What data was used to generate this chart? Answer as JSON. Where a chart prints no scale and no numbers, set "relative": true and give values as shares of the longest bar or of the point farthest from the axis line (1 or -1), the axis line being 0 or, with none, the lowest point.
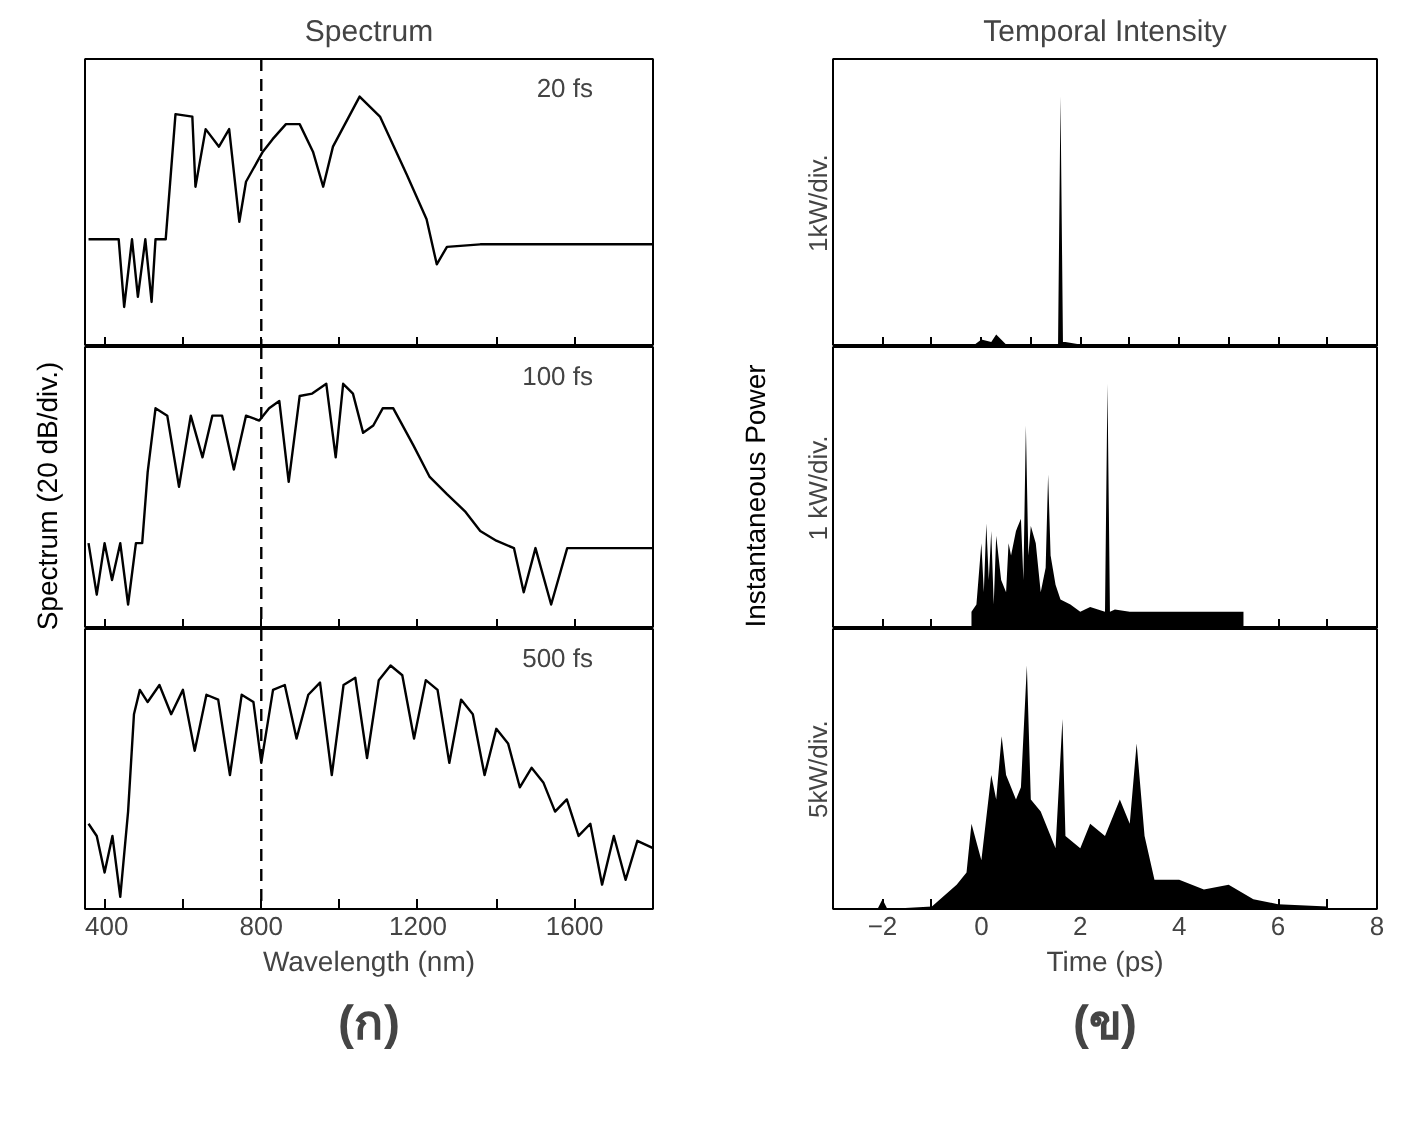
{
  "chart_data": [
    {
      "type": "line",
      "title": "Spectrum",
      "annotations": [
        "20 fs"
      ],
      "relative": true,
      "color": "#000000",
      "xlim": [
        350,
        1800
      ],
      "tick_labels": false,
      "xticks": [
        400,
        {
          "value": 600,
          "label": null
        },
        800,
        {
          "value": 1000,
          "label": null
        },
        1200,
        {
          "value": 1400,
          "label": null
        },
        1600
      ],
      "ref_lines": [
        {
          "axis": "x",
          "value": 800,
          "line_style": "dashed"
        }
      ],
      "x": [
        359,
        436,
        450,
        470,
        485,
        504,
        520,
        530,
        556,
        581,
        624,
        632,
        658,
        692,
        718,
        744,
        761,
        804,
        829,
        863,
        898,
        932,
        958,
        983,
        1051,
        1103,
        1171,
        1222,
        1248,
        1274,
        1359,
        1496,
        1800
      ],
      "values": [
        0.43,
        0.43,
        0.16,
        0.43,
        0.2,
        0.43,
        0.18,
        0.43,
        0.43,
        0.93,
        0.92,
        0.64,
        0.87,
        0.8,
        0.87,
        0.5,
        0.66,
        0.78,
        0.83,
        0.89,
        0.89,
        0.78,
        0.64,
        0.8,
        1,
        0.92,
        0.69,
        0.51,
        0.33,
        0.4,
        0.41,
        0.41,
        0.41
      ]
    },
    {
      "type": "line",
      "ylabel": "Spectrum (20 dB/div.)",
      "annotations": [
        "100 fs"
      ],
      "relative": true,
      "color": "#000000",
      "xlim": [
        350,
        1800
      ],
      "tick_labels": false,
      "xticks": [
        400,
        {
          "value": 600,
          "label": null
        },
        800,
        {
          "value": 1000,
          "label": null
        },
        1200,
        {
          "value": 1400,
          "label": null
        },
        1600
      ],
      "ref_lines": [
        {
          "axis": "x",
          "value": 800,
          "line_style": "dashed"
        }
      ],
      "x": [
        359,
        380,
        400,
        419,
        440,
        460,
        480,
        496,
        510,
        530,
        560,
        590,
        620,
        650,
        675,
        700,
        730,
        761,
        795,
        820,
        846,
        870,
        898,
        930,
        966,
        990,
        1009,
        1034,
        1060,
        1086,
        1110,
        1137,
        1188,
        1230,
        1274,
        1320,
        1359,
        1400,
        1445,
        1470,
        1500,
        1540,
        1581,
        1700,
        1800
      ],
      "values": [
        0.35,
        0.14,
        0.35,
        0.2,
        0.35,
        0.1,
        0.35,
        0.35,
        0.64,
        0.9,
        0.87,
        0.58,
        0.87,
        0.7,
        0.87,
        0.87,
        0.65,
        0.87,
        0.85,
        0.9,
        0.93,
        0.6,
        0.95,
        0.96,
        1.0,
        0.7,
        1.0,
        0.96,
        0.8,
        0.83,
        0.9,
        0.9,
        0.75,
        0.62,
        0.55,
        0.48,
        0.4,
        0.36,
        0.33,
        0.15,
        0.33,
        0.1,
        0.33,
        0.33,
        0.33
      ]
    },
    {
      "type": "line",
      "xlabel": "Wavelength (nm)",
      "subtitle": "(ก)",
      "annotations": [
        "500 fs"
      ],
      "relative": true,
      "color": "#000000",
      "xlim": [
        350,
        1800
      ],
      "tick_labels": "x",
      "xticks": [
        400,
        {
          "value": 600,
          "label": null
        },
        800,
        {
          "value": 1000,
          "label": null
        },
        1200,
        {
          "value": 1400,
          "label": null
        },
        1600
      ],
      "ref_lines": [
        {
          "axis": "x",
          "value": 800,
          "line_style": "dashed"
        }
      ],
      "x": [
        359,
        380,
        400,
        420,
        440,
        460,
        475,
        490,
        510,
        540,
        570,
        600,
        630,
        660,
        690,
        720,
        750,
        780,
        800,
        830,
        860,
        890,
        920,
        950,
        980,
        1010,
        1040,
        1070,
        1100,
        1130,
        1160,
        1190,
        1220,
        1250,
        1280,
        1310,
        1340,
        1370,
        1400,
        1430,
        1460,
        1490,
        1520,
        1550,
        1580,
        1610,
        1640,
        1670,
        1700,
        1730,
        1760,
        1800
      ],
      "values": [
        0.35,
        0.3,
        0.15,
        0.3,
        0.05,
        0.4,
        0.8,
        0.9,
        0.85,
        0.92,
        0.8,
        0.9,
        0.65,
        0.88,
        0.86,
        0.55,
        0.88,
        0.85,
        0.6,
        0.9,
        0.92,
        0.7,
        0.88,
        0.93,
        0.55,
        0.92,
        0.95,
        0.62,
        0.94,
        1.0,
        0.96,
        0.7,
        0.94,
        0.9,
        0.6,
        0.86,
        0.8,
        0.55,
        0.74,
        0.68,
        0.5,
        0.58,
        0.52,
        0.4,
        0.45,
        0.3,
        0.35,
        0.1,
        0.3,
        0.12,
        0.28,
        0.25
      ]
    },
    {
      "type": "area",
      "title": "Temporal Intensity",
      "ylabel": "1kW/div.",
      "relative": true,
      "color": "#000000",
      "xlim": [
        -3,
        8
      ],
      "tick_labels": false,
      "xticks": [
        -2,
        {
          "value": -1,
          "label": null
        },
        0,
        {
          "value": 1,
          "label": null
        },
        2,
        {
          "value": 3,
          "label": null
        },
        4,
        {
          "value": 5,
          "label": null
        },
        6,
        {
          "value": 7,
          "label": null
        },
        8
      ],
      "x": [
        -0.2,
        0,
        0.2,
        0.3,
        0.5,
        1.0,
        1.55,
        1.6,
        1.65,
        1.7,
        2.0,
        2.2
      ],
      "values": [
        0,
        0.03,
        0.02,
        0.05,
        0.01,
        0.01,
        0,
        1,
        0.02,
        0.02,
        0.01,
        0
      ]
    },
    {
      "type": "area",
      "ylabel": "1 kW/div.",
      "annotations": [
        "Instantaneous Power"
      ],
      "relative": true,
      "color": "#000000",
      "xlim": [
        -3,
        8
      ],
      "tick_labels": false,
      "xticks": [
        -2,
        {
          "value": -1,
          "label": null
        },
        0,
        {
          "value": 1,
          "label": null
        },
        2,
        {
          "value": 3,
          "label": null
        },
        4,
        {
          "value": 5,
          "label": null
        },
        6,
        {
          "value": 7,
          "label": null
        },
        8
      ],
      "x": [
        -0.2,
        -0.1,
        0,
        0.05,
        0.1,
        0.15,
        0.2,
        0.25,
        0.3,
        0.4,
        0.5,
        0.55,
        0.6,
        0.7,
        0.8,
        0.85,
        0.9,
        0.95,
        1.0,
        1.1,
        1.2,
        1.3,
        1.35,
        1.4,
        1.5,
        1.6,
        1.8,
        2.0,
        2.2,
        2.5,
        2.55,
        2.6,
        2.7,
        3.0,
        4.0,
        5.3
      ],
      "values": [
        0.07,
        0.1,
        0.35,
        0.15,
        0.43,
        0.2,
        0.4,
        0.1,
        0.38,
        0.2,
        0.15,
        0.35,
        0.3,
        0.4,
        0.45,
        0.2,
        0.83,
        0.3,
        0.42,
        0.35,
        0.15,
        0.25,
        0.63,
        0.3,
        0.18,
        0.12,
        0.1,
        0.07,
        0.09,
        0.07,
        1,
        0.07,
        0.08,
        0.07,
        0.07,
        0.07
      ]
    },
    {
      "type": "area",
      "ylabel": "5kW/div.",
      "xlabel": "Time (ps)",
      "subtitle": "(ข)",
      "relative": true,
      "color": "#000000",
      "xlim": [
        -3,
        8
      ],
      "tick_labels": "x",
      "xticks": [
        -2,
        {
          "value": -1,
          "label": null
        },
        0,
        {
          "value": 1,
          "label": null
        },
        2,
        {
          "value": 3,
          "label": null
        },
        4,
        {
          "value": 5,
          "label": null
        },
        6,
        {
          "value": 7,
          "label": null
        },
        8
      ],
      "x": [
        -2.1,
        -2.0,
        -1.9,
        -1,
        -0.5,
        -0.3,
        -0.2,
        0,
        0.2,
        0.3,
        0.41,
        0.5,
        0.7,
        0.8,
        0.92,
        1.0,
        1.2,
        1.4,
        1.5,
        1.64,
        1.7,
        2.0,
        2.2,
        2.5,
        2.8,
        3.0,
        3.14,
        3.3,
        3.5,
        4.0,
        4.5,
        5.0,
        5.5,
        6.0,
        7.0
      ],
      "values": [
        0,
        0.04,
        0,
        0.01,
        0.1,
        0.15,
        0.35,
        0.2,
        0.55,
        0.45,
        0.71,
        0.55,
        0.45,
        0.5,
        1,
        0.45,
        0.4,
        0.3,
        0.25,
        0.78,
        0.3,
        0.25,
        0.35,
        0.3,
        0.45,
        0.35,
        0.68,
        0.3,
        0.12,
        0.12,
        0.08,
        0.1,
        0.04,
        0.02,
        0.01
      ]
    }
  ]
}
